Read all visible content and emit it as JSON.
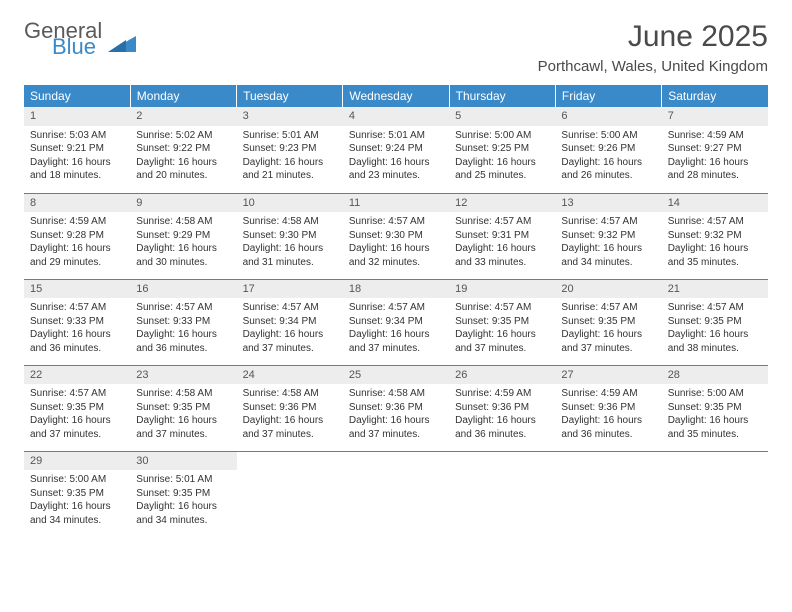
{
  "logo": {
    "word1": "General",
    "word2": "Blue",
    "accent_color": "#3a8ac9"
  },
  "title": "June 2025",
  "location": "Porthcawl, Wales, United Kingdom",
  "header_bg": "#3a8ac9",
  "header_text_color": "#ffffff",
  "grid_border_color": "#3a8ac9",
  "daynum_bg": "#ededed",
  "font_family": "Arial",
  "day_names": [
    "Sunday",
    "Monday",
    "Tuesday",
    "Wednesday",
    "Thursday",
    "Friday",
    "Saturday"
  ],
  "weeks": [
    [
      {
        "n": "1",
        "sr": "5:03 AM",
        "ss": "9:21 PM",
        "dl": "16 hours and 18 minutes."
      },
      {
        "n": "2",
        "sr": "5:02 AM",
        "ss": "9:22 PM",
        "dl": "16 hours and 20 minutes."
      },
      {
        "n": "3",
        "sr": "5:01 AM",
        "ss": "9:23 PM",
        "dl": "16 hours and 21 minutes."
      },
      {
        "n": "4",
        "sr": "5:01 AM",
        "ss": "9:24 PM",
        "dl": "16 hours and 23 minutes."
      },
      {
        "n": "5",
        "sr": "5:00 AM",
        "ss": "9:25 PM",
        "dl": "16 hours and 25 minutes."
      },
      {
        "n": "6",
        "sr": "5:00 AM",
        "ss": "9:26 PM",
        "dl": "16 hours and 26 minutes."
      },
      {
        "n": "7",
        "sr": "4:59 AM",
        "ss": "9:27 PM",
        "dl": "16 hours and 28 minutes."
      }
    ],
    [
      {
        "n": "8",
        "sr": "4:59 AM",
        "ss": "9:28 PM",
        "dl": "16 hours and 29 minutes."
      },
      {
        "n": "9",
        "sr": "4:58 AM",
        "ss": "9:29 PM",
        "dl": "16 hours and 30 minutes."
      },
      {
        "n": "10",
        "sr": "4:58 AM",
        "ss": "9:30 PM",
        "dl": "16 hours and 31 minutes."
      },
      {
        "n": "11",
        "sr": "4:57 AM",
        "ss": "9:30 PM",
        "dl": "16 hours and 32 minutes."
      },
      {
        "n": "12",
        "sr": "4:57 AM",
        "ss": "9:31 PM",
        "dl": "16 hours and 33 minutes."
      },
      {
        "n": "13",
        "sr": "4:57 AM",
        "ss": "9:32 PM",
        "dl": "16 hours and 34 minutes."
      },
      {
        "n": "14",
        "sr": "4:57 AM",
        "ss": "9:32 PM",
        "dl": "16 hours and 35 minutes."
      }
    ],
    [
      {
        "n": "15",
        "sr": "4:57 AM",
        "ss": "9:33 PM",
        "dl": "16 hours and 36 minutes."
      },
      {
        "n": "16",
        "sr": "4:57 AM",
        "ss": "9:33 PM",
        "dl": "16 hours and 36 minutes."
      },
      {
        "n": "17",
        "sr": "4:57 AM",
        "ss": "9:34 PM",
        "dl": "16 hours and 37 minutes."
      },
      {
        "n": "18",
        "sr": "4:57 AM",
        "ss": "9:34 PM",
        "dl": "16 hours and 37 minutes."
      },
      {
        "n": "19",
        "sr": "4:57 AM",
        "ss": "9:35 PM",
        "dl": "16 hours and 37 minutes."
      },
      {
        "n": "20",
        "sr": "4:57 AM",
        "ss": "9:35 PM",
        "dl": "16 hours and 37 minutes."
      },
      {
        "n": "21",
        "sr": "4:57 AM",
        "ss": "9:35 PM",
        "dl": "16 hours and 38 minutes."
      }
    ],
    [
      {
        "n": "22",
        "sr": "4:57 AM",
        "ss": "9:35 PM",
        "dl": "16 hours and 37 minutes."
      },
      {
        "n": "23",
        "sr": "4:58 AM",
        "ss": "9:35 PM",
        "dl": "16 hours and 37 minutes."
      },
      {
        "n": "24",
        "sr": "4:58 AM",
        "ss": "9:36 PM",
        "dl": "16 hours and 37 minutes."
      },
      {
        "n": "25",
        "sr": "4:58 AM",
        "ss": "9:36 PM",
        "dl": "16 hours and 37 minutes."
      },
      {
        "n": "26",
        "sr": "4:59 AM",
        "ss": "9:36 PM",
        "dl": "16 hours and 36 minutes."
      },
      {
        "n": "27",
        "sr": "4:59 AM",
        "ss": "9:36 PM",
        "dl": "16 hours and 36 minutes."
      },
      {
        "n": "28",
        "sr": "5:00 AM",
        "ss": "9:35 PM",
        "dl": "16 hours and 35 minutes."
      }
    ],
    [
      {
        "n": "29",
        "sr": "5:00 AM",
        "ss": "9:35 PM",
        "dl": "16 hours and 34 minutes."
      },
      {
        "n": "30",
        "sr": "5:01 AM",
        "ss": "9:35 PM",
        "dl": "16 hours and 34 minutes."
      },
      null,
      null,
      null,
      null,
      null
    ]
  ],
  "labels": {
    "sunrise": "Sunrise:",
    "sunset": "Sunset:",
    "daylight": "Daylight:"
  }
}
